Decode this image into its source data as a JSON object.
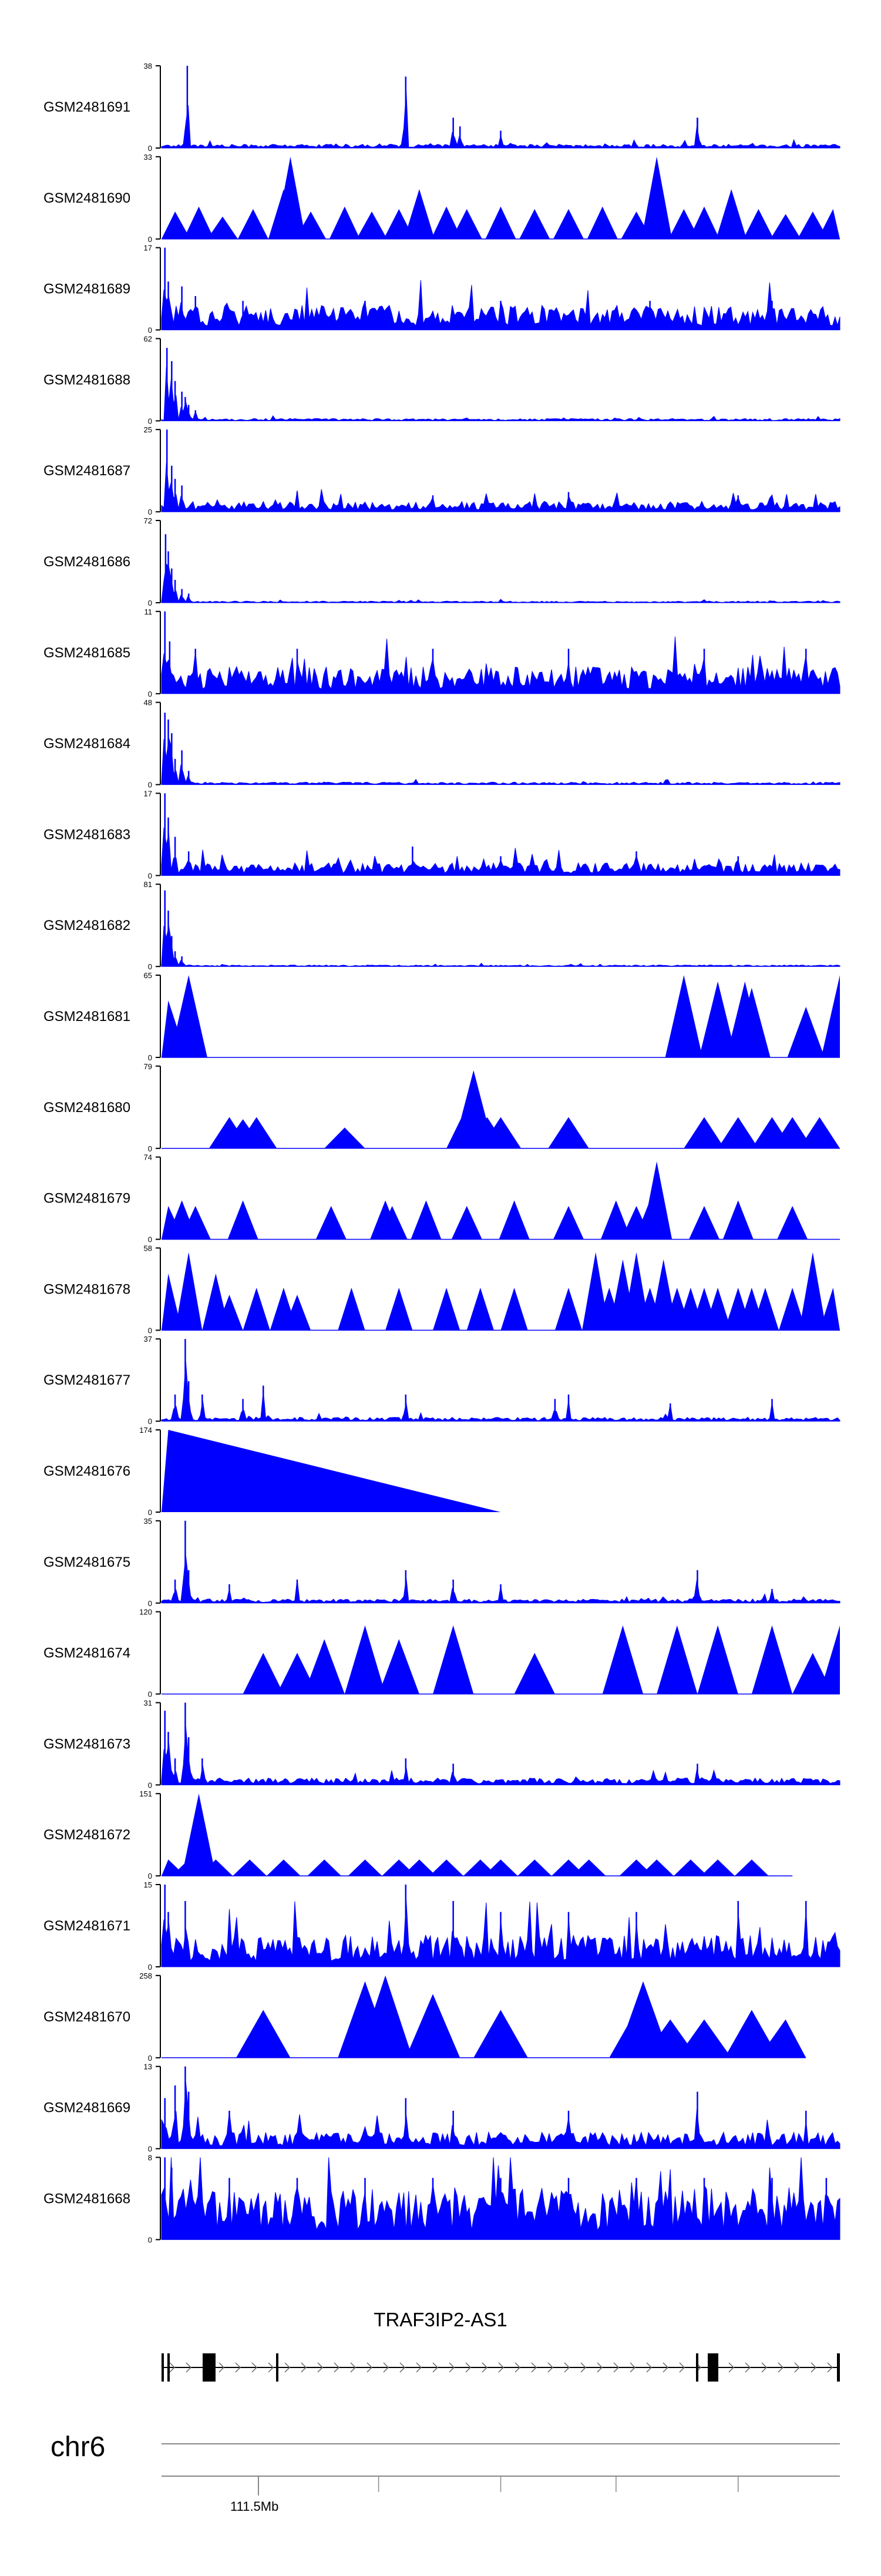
{
  "gene": {
    "name": "TRAF3IP2-AS1"
  },
  "chromosome": {
    "name": "chr6",
    "tick_label": "111.5Mb"
  },
  "colors": {
    "signal": "#0000ff",
    "axis": "#000000",
    "gene": "#000000",
    "ruler": "#888888"
  },
  "chart_data": {
    "type": "area",
    "title": "",
    "xlabel": "chr6",
    "x_tick_labels": [
      "111.5Mb"
    ],
    "tracks": [
      {
        "id": "GSM2481691",
        "ymax": 38,
        "style": "noise",
        "base": 1.2,
        "peaks": [
          [
            0.035,
            8
          ],
          [
            0.038,
            38
          ],
          [
            0.037,
            6
          ],
          [
            0.36,
            33
          ],
          [
            0.43,
            14
          ],
          [
            0.44,
            10
          ],
          [
            0.5,
            8
          ],
          [
            0.79,
            14
          ],
          [
            0.79,
            14
          ]
        ]
      },
      {
        "id": "GSM2481690",
        "ymax": 33,
        "style": "triangles",
        "width": 0.045,
        "x_end": 1.0,
        "peaks": [
          [
            0.02,
            11
          ],
          [
            0.055,
            13
          ],
          [
            0.09,
            9
          ],
          [
            0.135,
            12
          ],
          [
            0.18,
            20
          ],
          [
            0.19,
            33
          ],
          [
            0.22,
            11
          ],
          [
            0.27,
            13
          ],
          [
            0.31,
            11
          ],
          [
            0.35,
            12
          ],
          [
            0.38,
            20
          ],
          [
            0.42,
            13
          ],
          [
            0.45,
            12
          ],
          [
            0.5,
            13
          ],
          [
            0.55,
            12
          ],
          [
            0.6,
            12
          ],
          [
            0.65,
            13
          ],
          [
            0.7,
            11
          ],
          [
            0.73,
            33
          ],
          [
            0.77,
            12
          ],
          [
            0.8,
            13
          ],
          [
            0.84,
            20
          ],
          [
            0.88,
            12
          ],
          [
            0.92,
            10
          ],
          [
            0.96,
            11
          ],
          [
            0.99,
            12
          ]
        ]
      },
      {
        "id": "GSM2481689",
        "ymax": 17,
        "style": "noise",
        "base": 3.5,
        "peaks": [
          [
            0.005,
            17
          ],
          [
            0.01,
            10
          ],
          [
            0.03,
            9
          ],
          [
            0.05,
            7
          ],
          [
            0.12,
            6
          ],
          [
            0.3,
            6
          ],
          [
            0.5,
            6
          ],
          [
            0.72,
            6
          ],
          [
            0.9,
            6
          ]
        ]
      },
      {
        "id": "GSM2481688",
        "ymax": 62,
        "style": "noise",
        "base": 1.2,
        "peaks": [
          [
            0.008,
            55
          ],
          [
            0.015,
            45
          ],
          [
            0.02,
            30
          ],
          [
            0.03,
            22
          ],
          [
            0.035,
            18
          ],
          [
            0.04,
            12
          ],
          [
            0.05,
            8
          ]
        ]
      },
      {
        "id": "GSM2481687",
        "ymax": 25,
        "style": "noise",
        "base": 2.2,
        "peaks": [
          [
            0.008,
            25
          ],
          [
            0.015,
            14
          ],
          [
            0.02,
            10
          ],
          [
            0.03,
            8
          ],
          [
            0.2,
            6
          ],
          [
            0.4,
            5
          ],
          [
            0.6,
            6
          ],
          [
            0.85,
            5
          ]
        ]
      },
      {
        "id": "GSM2481686",
        "ymax": 72,
        "style": "noise",
        "base": 1.0,
        "peaks": [
          [
            0.006,
            60
          ],
          [
            0.01,
            45
          ],
          [
            0.015,
            30
          ],
          [
            0.02,
            20
          ],
          [
            0.03,
            12
          ],
          [
            0.04,
            8
          ]
        ]
      },
      {
        "id": "GSM2481685",
        "ymax": 11,
        "style": "noise",
        "base": 2.5,
        "peaks": [
          [
            0.005,
            11
          ],
          [
            0.012,
            7
          ],
          [
            0.05,
            6
          ],
          [
            0.2,
            6
          ],
          [
            0.4,
            6
          ],
          [
            0.6,
            6
          ],
          [
            0.8,
            6
          ],
          [
            0.95,
            6
          ]
        ]
      },
      {
        "id": "GSM2481684",
        "ymax": 48,
        "style": "noise",
        "base": 1.0,
        "peaks": [
          [
            0.005,
            42
          ],
          [
            0.01,
            38
          ],
          [
            0.015,
            30
          ],
          [
            0.02,
            15
          ],
          [
            0.03,
            20
          ],
          [
            0.04,
            8
          ]
        ]
      },
      {
        "id": "GSM2481683",
        "ymax": 17,
        "style": "noise",
        "base": 1.8,
        "peaks": [
          [
            0.005,
            17
          ],
          [
            0.01,
            12
          ],
          [
            0.02,
            8
          ],
          [
            0.04,
            5
          ],
          [
            0.37,
            6
          ],
          [
            0.5,
            4
          ],
          [
            0.7,
            5
          ],
          [
            0.85,
            4
          ]
        ]
      },
      {
        "id": "GSM2481682",
        "ymax": 81,
        "style": "noise",
        "base": 1.0,
        "peaks": [
          [
            0.005,
            75
          ],
          [
            0.01,
            55
          ],
          [
            0.015,
            30
          ],
          [
            0.02,
            15
          ],
          [
            0.03,
            10
          ]
        ]
      },
      {
        "id": "GSM2481681",
        "ymax": 65,
        "style": "triangles",
        "width": 0.055,
        "x_end": 1.0,
        "peaks": [
          [
            0.01,
            45
          ],
          [
            0.04,
            65
          ],
          [
            0.77,
            65
          ],
          [
            0.82,
            60
          ],
          [
            0.86,
            60
          ],
          [
            0.87,
            55
          ],
          [
            0.95,
            40
          ],
          [
            1.0,
            65
          ]
        ]
      },
      {
        "id": "GSM2481680",
        "ymax": 79,
        "style": "triangles",
        "width": 0.06,
        "x_end": 1.0,
        "peaks": [
          [
            0.1,
            30
          ],
          [
            0.12,
            28
          ],
          [
            0.14,
            30
          ],
          [
            0.27,
            20
          ],
          [
            0.45,
            40
          ],
          [
            0.46,
            75
          ],
          [
            0.48,
            30
          ],
          [
            0.5,
            30
          ],
          [
            0.6,
            30
          ],
          [
            0.8,
            30
          ],
          [
            0.85,
            30
          ],
          [
            0.9,
            30
          ],
          [
            0.93,
            30
          ],
          [
            0.97,
            30
          ]
        ]
      },
      {
        "id": "GSM2481679",
        "ymax": 74,
        "style": "triangles",
        "width": 0.045,
        "x_end": 1.0,
        "peaks": [
          [
            0.01,
            30
          ],
          [
            0.03,
            35
          ],
          [
            0.05,
            30
          ],
          [
            0.12,
            35
          ],
          [
            0.25,
            30
          ],
          [
            0.33,
            35
          ],
          [
            0.34,
            30
          ],
          [
            0.39,
            35
          ],
          [
            0.45,
            30
          ],
          [
            0.52,
            35
          ],
          [
            0.6,
            30
          ],
          [
            0.67,
            35
          ],
          [
            0.7,
            30
          ],
          [
            0.72,
            35
          ],
          [
            0.73,
            70
          ],
          [
            0.8,
            30
          ],
          [
            0.85,
            35
          ],
          [
            0.93,
            30
          ]
        ]
      },
      {
        "id": "GSM2481678",
        "ymax": 58,
        "style": "triangles",
        "width": 0.04,
        "x_end": 1.0,
        "peaks": [
          [
            0.01,
            40
          ],
          [
            0.04,
            55
          ],
          [
            0.08,
            40
          ],
          [
            0.1,
            25
          ],
          [
            0.14,
            30
          ],
          [
            0.18,
            30
          ],
          [
            0.2,
            25
          ],
          [
            0.28,
            30
          ],
          [
            0.35,
            30
          ],
          [
            0.42,
            30
          ],
          [
            0.47,
            30
          ],
          [
            0.52,
            30
          ],
          [
            0.6,
            30
          ],
          [
            0.64,
            55
          ],
          [
            0.66,
            30
          ],
          [
            0.68,
            50
          ],
          [
            0.7,
            55
          ],
          [
            0.72,
            30
          ],
          [
            0.74,
            50
          ],
          [
            0.76,
            30
          ],
          [
            0.78,
            30
          ],
          [
            0.8,
            30
          ],
          [
            0.82,
            30
          ],
          [
            0.85,
            30
          ],
          [
            0.87,
            30
          ],
          [
            0.89,
            30
          ],
          [
            0.93,
            30
          ],
          [
            0.96,
            55
          ],
          [
            0.99,
            30
          ]
        ]
      },
      {
        "id": "GSM2481677",
        "ymax": 37,
        "style": "noise",
        "base": 1.2,
        "peaks": [
          [
            0.02,
            12
          ],
          [
            0.035,
            37
          ],
          [
            0.04,
            18
          ],
          [
            0.06,
            12
          ],
          [
            0.12,
            10
          ],
          [
            0.15,
            16
          ],
          [
            0.36,
            12
          ],
          [
            0.58,
            10
          ],
          [
            0.6,
            12
          ],
          [
            0.75,
            8
          ],
          [
            0.9,
            10
          ]
        ]
      },
      {
        "id": "GSM2481676",
        "ymax": 174,
        "style": "wedge",
        "x_start": 0.0,
        "x_peak": 0.01,
        "x_end": 0.5,
        "peak_value": 174
      },
      {
        "id": "GSM2481675",
        "ymax": 35,
        "style": "noise",
        "base": 1.2,
        "peaks": [
          [
            0.02,
            10
          ],
          [
            0.035,
            35
          ],
          [
            0.04,
            14
          ],
          [
            0.1,
            8
          ],
          [
            0.2,
            10
          ],
          [
            0.36,
            14
          ],
          [
            0.43,
            10
          ],
          [
            0.5,
            8
          ],
          [
            0.79,
            14
          ],
          [
            0.9,
            6
          ]
        ]
      },
      {
        "id": "GSM2481674",
        "ymax": 120,
        "style": "triangles",
        "width": 0.06,
        "x_end": 1.0,
        "peaks": [
          [
            0.15,
            60
          ],
          [
            0.2,
            60
          ],
          [
            0.24,
            80
          ],
          [
            0.3,
            100
          ],
          [
            0.35,
            80
          ],
          [
            0.43,
            100
          ],
          [
            0.55,
            60
          ],
          [
            0.68,
            100
          ],
          [
            0.76,
            100
          ],
          [
            0.82,
            100
          ],
          [
            0.9,
            100
          ],
          [
            0.96,
            60
          ],
          [
            1.0,
            100
          ]
        ]
      },
      {
        "id": "GSM2481673",
        "ymax": 31,
        "style": "noise",
        "base": 1.8,
        "peaks": [
          [
            0.005,
            28
          ],
          [
            0.01,
            20
          ],
          [
            0.02,
            10
          ],
          [
            0.035,
            31
          ],
          [
            0.04,
            18
          ],
          [
            0.06,
            10
          ],
          [
            0.36,
            10
          ],
          [
            0.43,
            8
          ],
          [
            0.79,
            8
          ]
        ]
      },
      {
        "id": "GSM2481672",
        "ymax": 151,
        "style": "triangles",
        "width": 0.05,
        "x_end": 0.93,
        "peaks": [
          [
            0.01,
            30
          ],
          [
            0.04,
            30
          ],
          [
            0.055,
            151
          ],
          [
            0.08,
            30
          ],
          [
            0.13,
            30
          ],
          [
            0.18,
            30
          ],
          [
            0.24,
            30
          ],
          [
            0.3,
            30
          ],
          [
            0.35,
            30
          ],
          [
            0.38,
            30
          ],
          [
            0.42,
            30
          ],
          [
            0.47,
            30
          ],
          [
            0.5,
            30
          ],
          [
            0.55,
            30
          ],
          [
            0.6,
            30
          ],
          [
            0.63,
            30
          ],
          [
            0.7,
            30
          ],
          [
            0.73,
            30
          ],
          [
            0.78,
            30
          ],
          [
            0.82,
            30
          ],
          [
            0.87,
            30
          ]
        ]
      },
      {
        "id": "GSM2481671",
        "ymax": 15,
        "style": "noise",
        "base": 4.0,
        "peaks": [
          [
            0.005,
            15
          ],
          [
            0.01,
            10
          ],
          [
            0.035,
            12
          ],
          [
            0.36,
            15
          ],
          [
            0.43,
            12
          ],
          [
            0.5,
            10
          ],
          [
            0.6,
            10
          ],
          [
            0.7,
            10
          ],
          [
            0.85,
            12
          ],
          [
            0.95,
            12
          ]
        ]
      },
      {
        "id": "GSM2481670",
        "ymax": 258,
        "style": "triangles",
        "width": 0.08,
        "x_end": 0.95,
        "peaks": [
          [
            0.15,
            150
          ],
          [
            0.3,
            240
          ],
          [
            0.33,
            258
          ],
          [
            0.4,
            200
          ],
          [
            0.5,
            150
          ],
          [
            0.7,
            150
          ],
          [
            0.71,
            240
          ],
          [
            0.75,
            120
          ],
          [
            0.8,
            120
          ],
          [
            0.87,
            150
          ],
          [
            0.92,
            120
          ]
        ]
      },
      {
        "id": "GSM2481669",
        "ymax": 13,
        "style": "noise",
        "base": 1.8,
        "peaks": [
          [
            0.005,
            8
          ],
          [
            0.02,
            10
          ],
          [
            0.035,
            13
          ],
          [
            0.04,
            9
          ],
          [
            0.1,
            6
          ],
          [
            0.36,
            8
          ],
          [
            0.43,
            6
          ],
          [
            0.6,
            6
          ],
          [
            0.79,
            9
          ],
          [
            0.95,
            6
          ]
        ]
      },
      {
        "id": "GSM2481668",
        "ymax": 8,
        "style": "noise",
        "base": 3.5,
        "peaks": [
          [
            0.005,
            8
          ],
          [
            0.015,
            7
          ],
          [
            0.1,
            6
          ],
          [
            0.2,
            6
          ],
          [
            0.3,
            6
          ],
          [
            0.4,
            6
          ],
          [
            0.5,
            6
          ],
          [
            0.6,
            6
          ],
          [
            0.7,
            6
          ],
          [
            0.8,
            6
          ],
          [
            0.9,
            6
          ],
          [
            0.98,
            6
          ]
        ]
      }
    ]
  }
}
